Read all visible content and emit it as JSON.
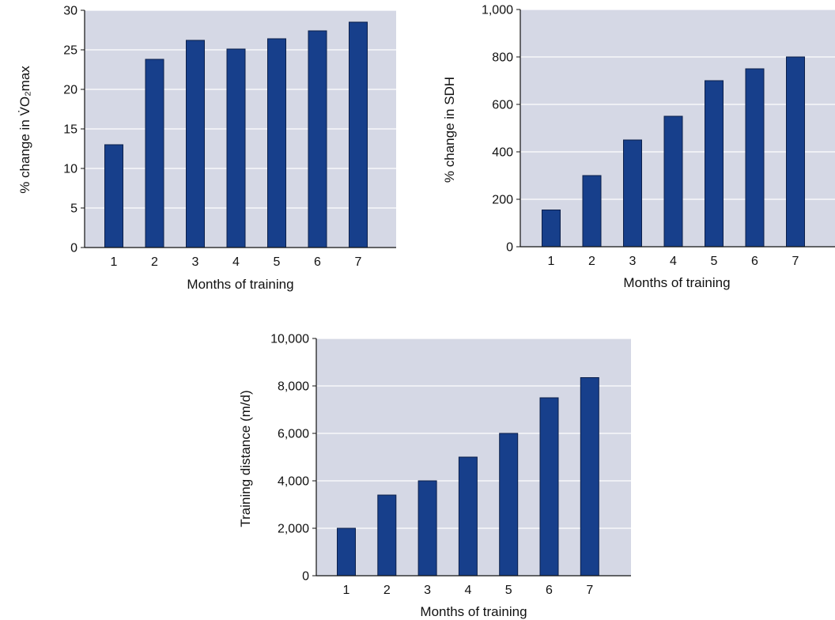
{
  "colors": {
    "panel_bg": "#d5d8e5",
    "bar_fill": "#173f8b",
    "bar_stroke": "#0b1f4a",
    "gridline": "#ffffff",
    "axis": "#111111"
  },
  "chart_data": [
    {
      "type": "bar",
      "categories": [
        "1",
        "2",
        "3",
        "4",
        "5",
        "6",
        "7"
      ],
      "values": [
        13,
        23.8,
        26.2,
        25.1,
        26.4,
        27.4,
        28.5
      ],
      "xlabel": "Months of training",
      "ylabel": "% change in V̇O₂max",
      "ylim": [
        0,
        30
      ],
      "yticks": [
        "0",
        "5",
        "10",
        "15",
        "20",
        "25",
        "30"
      ],
      "grid": true
    },
    {
      "type": "bar",
      "categories": [
        "1",
        "2",
        "3",
        "4",
        "5",
        "6",
        "7"
      ],
      "values": [
        155,
        300,
        450,
        550,
        700,
        750,
        800
      ],
      "xlabel": "Months of training",
      "ylabel": "% change in SDH",
      "ylim": [
        0,
        1000
      ],
      "yticks": [
        "0",
        "200",
        "400",
        "600",
        "800",
        "1,000"
      ],
      "grid": true
    },
    {
      "type": "bar",
      "categories": [
        "1",
        "2",
        "3",
        "4",
        "5",
        "6",
        "7"
      ],
      "values": [
        2000,
        3400,
        4000,
        5000,
        6000,
        7500,
        8350
      ],
      "xlabel": "Months of training",
      "ylabel": "Training distance (m/d)",
      "ylim": [
        0,
        10000
      ],
      "yticks": [
        "0",
        "2,000",
        "4,000",
        "6,000",
        "8,000",
        "10,000"
      ],
      "grid": true
    }
  ]
}
